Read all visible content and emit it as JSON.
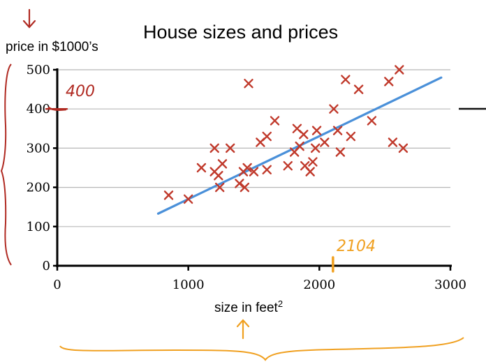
{
  "chart_data": {
    "type": "scatter",
    "title": "House sizes and prices",
    "ylabel": "price in $1000’s",
    "xlabel_text": "size in feet",
    "xlabel_sup": "2",
    "xlim": [
      0,
      3000
    ],
    "ylim": [
      0,
      500
    ],
    "x_ticks": [
      0,
      1000,
      2000,
      3000
    ],
    "y_ticks": [
      0,
      100,
      200,
      300,
      400,
      500
    ],
    "grid": true,
    "points": [
      {
        "x": 850,
        "y": 180
      },
      {
        "x": 1000,
        "y": 170
      },
      {
        "x": 1100,
        "y": 250
      },
      {
        "x": 1200,
        "y": 300
      },
      {
        "x": 1200,
        "y": 240
      },
      {
        "x": 1230,
        "y": 230
      },
      {
        "x": 1240,
        "y": 200
      },
      {
        "x": 1260,
        "y": 260
      },
      {
        "x": 1320,
        "y": 300
      },
      {
        "x": 1390,
        "y": 210
      },
      {
        "x": 1420,
        "y": 240
      },
      {
        "x": 1430,
        "y": 200
      },
      {
        "x": 1450,
        "y": 250
      },
      {
        "x": 1460,
        "y": 465
      },
      {
        "x": 1500,
        "y": 240
      },
      {
        "x": 1550,
        "y": 315
      },
      {
        "x": 1600,
        "y": 330
      },
      {
        "x": 1600,
        "y": 245
      },
      {
        "x": 1660,
        "y": 370
      },
      {
        "x": 1760,
        "y": 255
      },
      {
        "x": 1810,
        "y": 290
      },
      {
        "x": 1830,
        "y": 350
      },
      {
        "x": 1850,
        "y": 305
      },
      {
        "x": 1880,
        "y": 335
      },
      {
        "x": 1890,
        "y": 255
      },
      {
        "x": 1930,
        "y": 240
      },
      {
        "x": 1950,
        "y": 265
      },
      {
        "x": 1970,
        "y": 300
      },
      {
        "x": 1980,
        "y": 345
      },
      {
        "x": 2040,
        "y": 315
      },
      {
        "x": 2110,
        "y": 400
      },
      {
        "x": 2140,
        "y": 345
      },
      {
        "x": 2160,
        "y": 290
      },
      {
        "x": 2200,
        "y": 475
      },
      {
        "x": 2240,
        "y": 330
      },
      {
        "x": 2300,
        "y": 450
      },
      {
        "x": 2400,
        "y": 370
      },
      {
        "x": 2530,
        "y": 470
      },
      {
        "x": 2560,
        "y": 315
      },
      {
        "x": 2610,
        "y": 500
      },
      {
        "x": 2640,
        "y": 300
      }
    ],
    "fit_line": {
      "x": [
        770,
        2930
      ],
      "y": [
        133,
        480
      ]
    },
    "colors": {
      "points": "#c0392b",
      "fit_line": "#4a90d9",
      "grid": "#b8b8b8",
      "annotation_red": "#b02a22",
      "annotation_orange": "#f0a020"
    },
    "annotations": {
      "price_value": "400",
      "price_mark_y": 400,
      "size_value": "2104",
      "size_mark_x": 2104
    }
  }
}
